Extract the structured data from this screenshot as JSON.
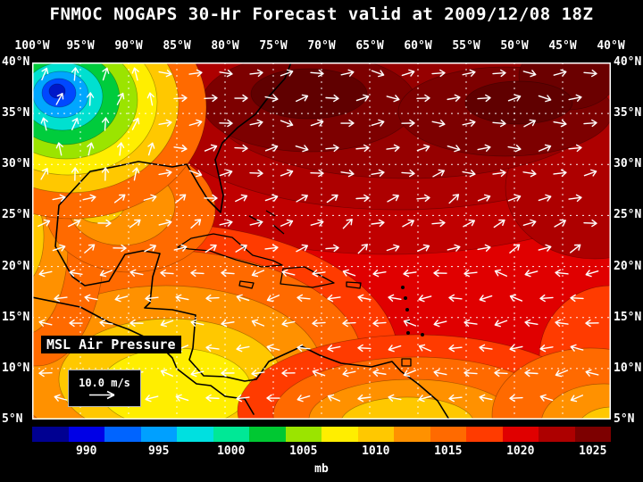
{
  "title": "FNMOC NOGAPS 30-Hr Forecast valid at 2009/12/08 18Z",
  "axes": {
    "lon_labels": [
      "100°W",
      "95°W",
      "90°W",
      "85°W",
      "80°W",
      "75°W",
      "70°W",
      "65°W",
      "60°W",
      "55°W",
      "50°W",
      "45°W",
      "40°W"
    ],
    "lat_labels": [
      "40°N",
      "35°N",
      "30°N",
      "25°N",
      "20°N",
      "15°N",
      "10°N",
      "5°N"
    ]
  },
  "map": {
    "field_label": "MSL Air Pressure",
    "wind_legend": "10.0 m/s"
  },
  "colorbar": {
    "unit": "mb",
    "tick_labels": [
      "990",
      "995",
      "1000",
      "1005",
      "1010",
      "1015",
      "1020",
      "1025"
    ],
    "colors": [
      "#000091",
      "#0000e6",
      "#0064ff",
      "#00a0ff",
      "#00e0e0",
      "#00e896",
      "#00c832",
      "#9be400",
      "#ffee00",
      "#ffc800",
      "#ff9100",
      "#ff6a00",
      "#ff3b00",
      "#e00000",
      "#ad0000",
      "#7d0000"
    ]
  },
  "chart_data": {
    "type": "heatmap",
    "title": "FNMOC NOGAPS 30-Hr Forecast valid at 2009/12/08 18Z",
    "field": "MSL Air Pressure",
    "unit": "mb",
    "x_axis": {
      "label": "longitude",
      "ticks": [
        "100°W",
        "95°W",
        "90°W",
        "85°W",
        "80°W",
        "75°W",
        "70°W",
        "65°W",
        "60°W",
        "55°W",
        "50°W",
        "45°W",
        "40°W"
      ]
    },
    "y_axis": {
      "label": "latitude",
      "ticks": [
        "40°N",
        "35°N",
        "30°N",
        "25°N",
        "20°N",
        "15°N",
        "10°N",
        "5°N"
      ]
    },
    "colorbar": {
      "ticks": [
        990,
        995,
        1000,
        1005,
        1010,
        1015,
        1020,
        1025
      ],
      "range_mb": [
        987.5,
        1027.5
      ]
    },
    "wind_reference_vector": "10.0 m/s",
    "notable_features": [
      {
        "feature": "low-pressure center",
        "location": "near 97°W 37°N (top-left)",
        "approx_value_mb": 990
      },
      {
        "feature": "high-pressure ridge",
        "location": "central North Atlantic 30-40°N",
        "approx_value_mb": 1025
      },
      {
        "feature": "lower-pressure band",
        "location": "tropics south of 15°N",
        "approx_value_mb": 1008
      }
    ]
  }
}
